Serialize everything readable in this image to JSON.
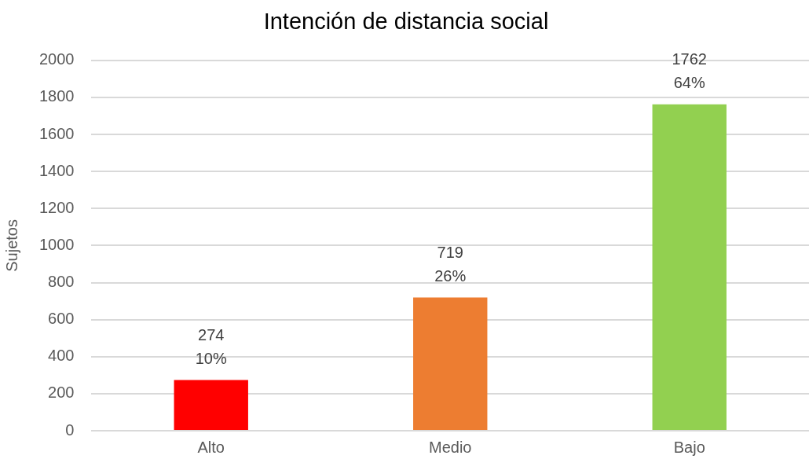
{
  "chart_data": {
    "type": "bar",
    "title": "Intención de distancia social",
    "ylabel": "Sujetos",
    "categories": [
      "Alto",
      "Medio",
      "Bajo"
    ],
    "values": [
      274,
      719,
      1762
    ],
    "colors": [
      "#ff0000",
      "#ed7d31",
      "#92d050"
    ],
    "ylim": [
      0,
      2000
    ],
    "yticks": [
      0,
      200,
      400,
      600,
      800,
      1000,
      1200,
      1400,
      1600,
      1800,
      2000
    ],
    "grid": "y",
    "data_labels": true,
    "annotations": [
      {
        "text": "10%",
        "x": "Alto",
        "y": 274
      },
      {
        "text": "26%",
        "x": "Medio",
        "y": 719
      },
      {
        "text": "64%",
        "x": "Bajo",
        "y": 1762
      }
    ]
  }
}
